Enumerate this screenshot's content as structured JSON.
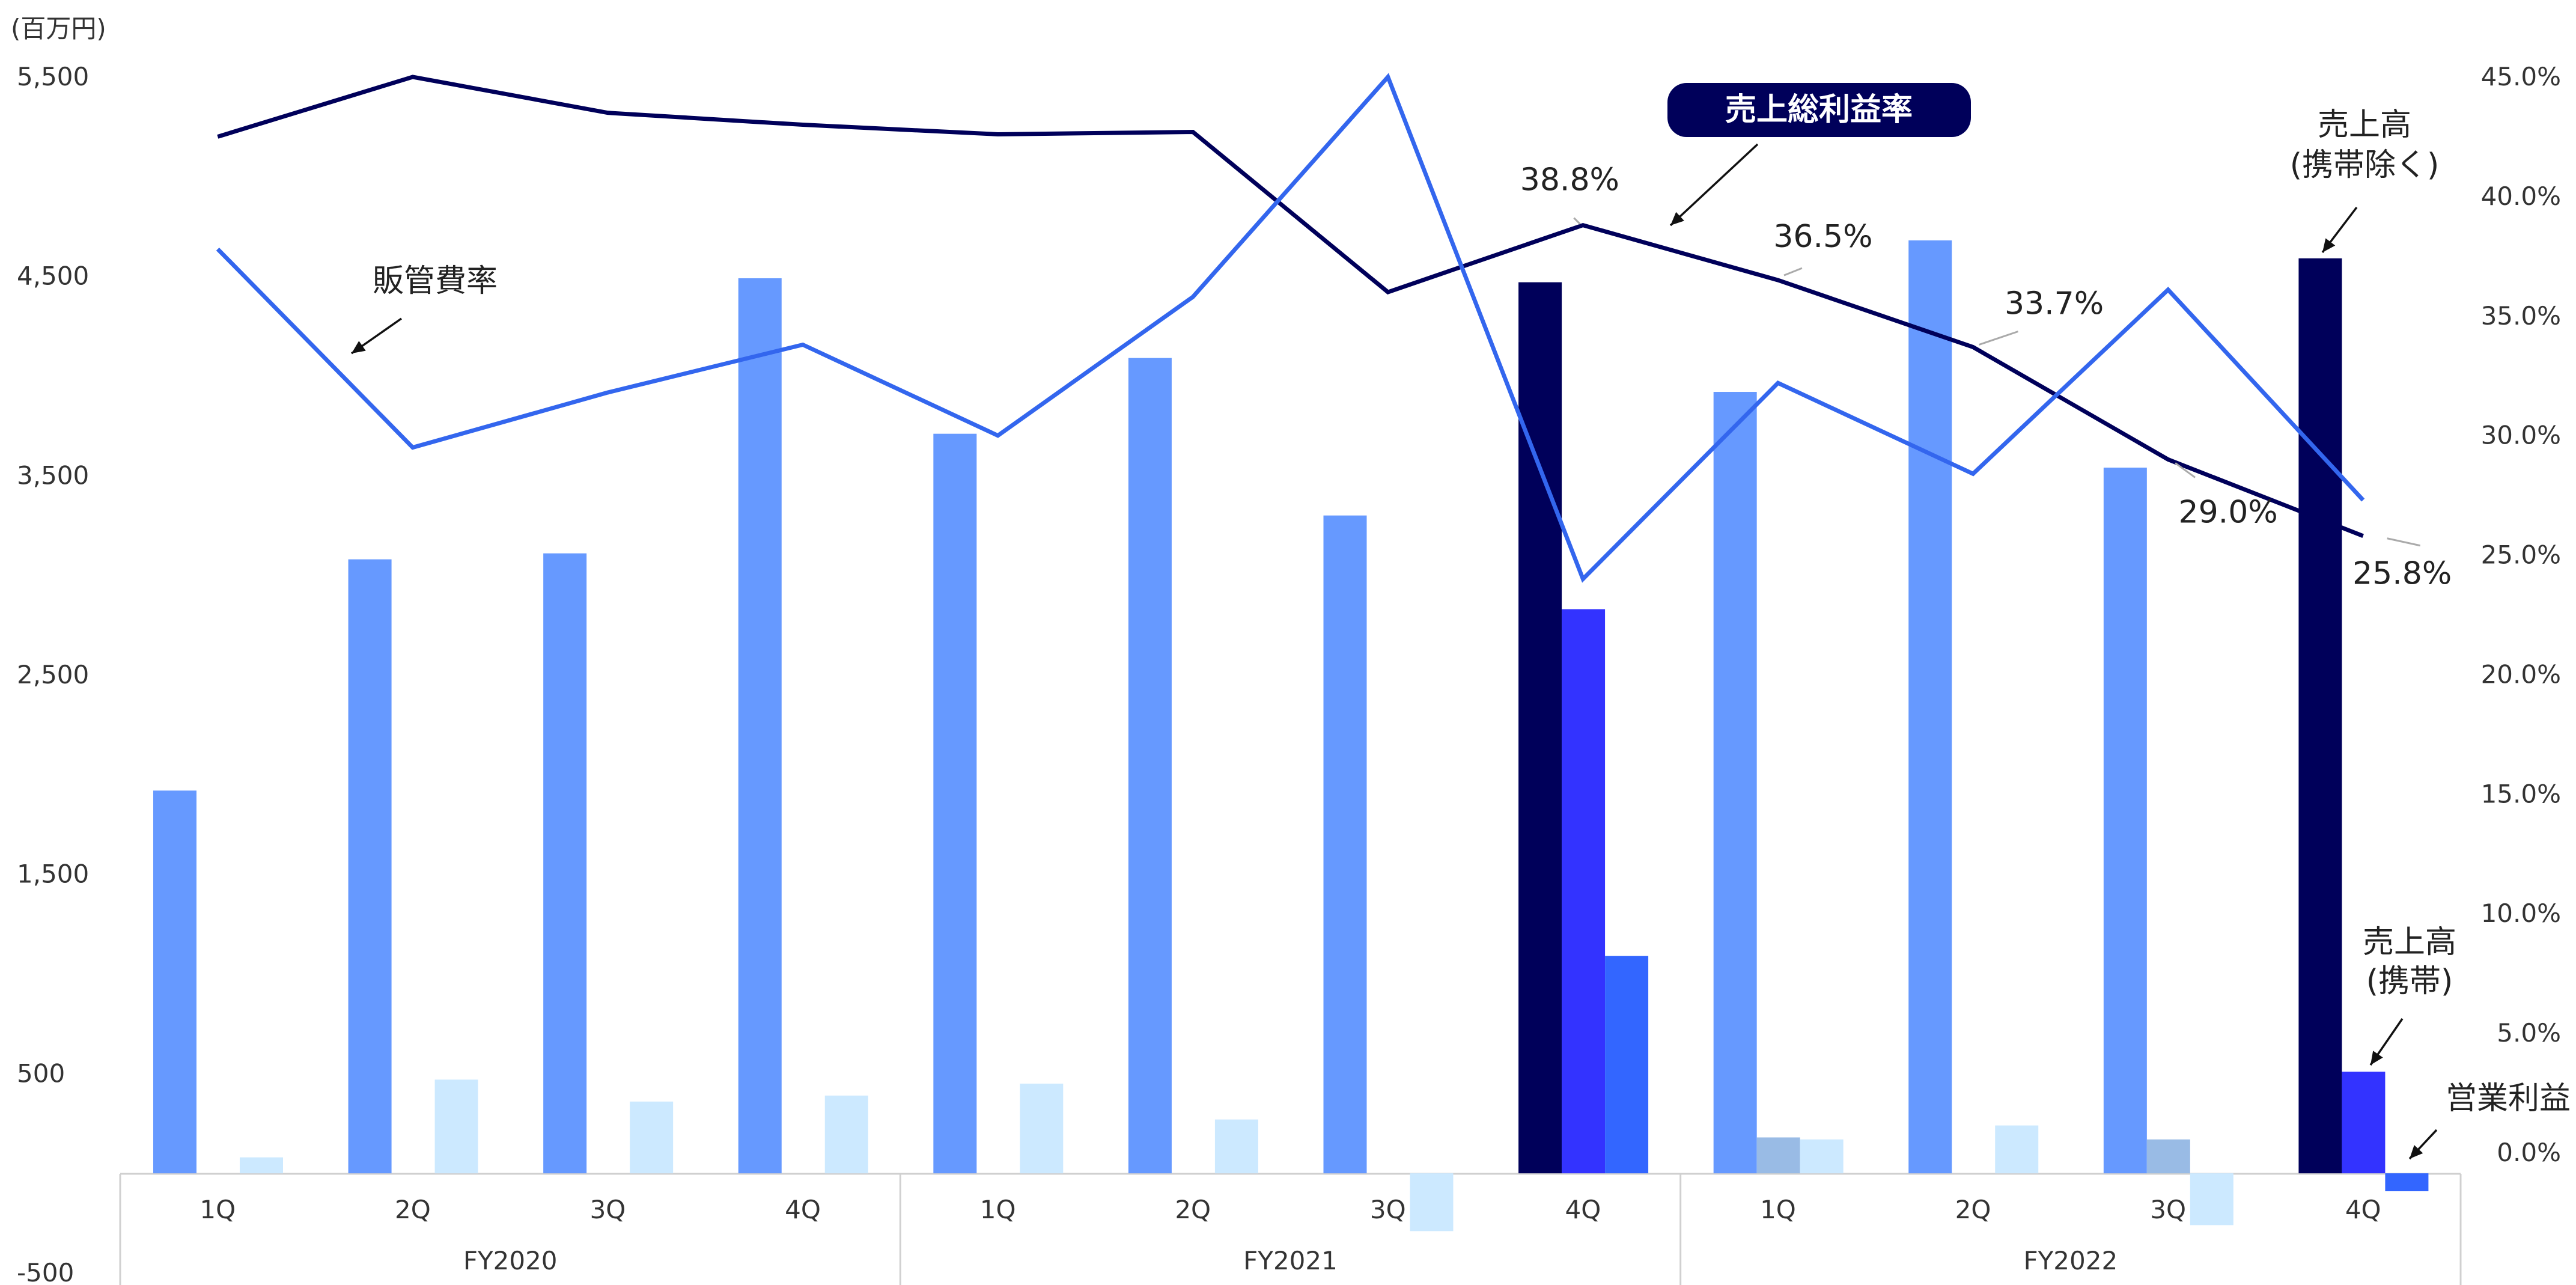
{
  "chart_data": {
    "type": "bar",
    "y_unit_label": "(百万円)",
    "y_left": {
      "ylim": [
        -500,
        5500
      ],
      "ticks": [
        "5,500",
        "4,500",
        "3,500",
        "2,500",
        "1,500",
        "500",
        "-500"
      ],
      "tick_values": [
        5500,
        4500,
        3500,
        2500,
        1500,
        500,
        -500
      ]
    },
    "y_right": {
      "ylim": [
        -2.5,
        45
      ],
      "ticks": [
        "45.0%",
        "40.0%",
        "35.0%",
        "30.0%",
        "25.0%",
        "20.0%",
        "15.0%",
        "10.0%",
        "5.0%",
        "0.0%"
      ],
      "tick_values": [
        45,
        40,
        35,
        30,
        25,
        20,
        15,
        10,
        5,
        0
      ]
    },
    "groups": [
      "FY2020",
      "FY2021",
      "FY2022"
    ],
    "quarters": [
      "1Q",
      "2Q",
      "3Q",
      "4Q",
      "1Q",
      "2Q",
      "3Q",
      "4Q",
      "1Q",
      "2Q",
      "3Q",
      "4Q"
    ],
    "colors": {
      "sales_total": "#6699ff",
      "sales_ex_mobile": "#00005a",
      "sales_mobile": "#3333ff",
      "operating_profit": "#cce9ff",
      "operating_profit_fy21q4": "#3366ff",
      "operating_profit_fy22q4": "#3366ff",
      "small_bar": "#99bbe5",
      "gross_margin_line": "#00005a",
      "sga_line": "#3366ee",
      "tag_bg": "#00005a"
    },
    "series": [
      {
        "key": "sales",
        "values": [
          1920,
          3080,
          3110,
          4490,
          3710,
          4090,
          3300,
          null,
          3920,
          4680,
          3540,
          null
        ]
      },
      {
        "key": "sales_ex_mobile",
        "values": [
          null,
          null,
          null,
          null,
          null,
          null,
          null,
          4470,
          null,
          null,
          null,
          4590
        ]
      },
      {
        "key": "sales_mobile",
        "values": [
          null,
          null,
          null,
          null,
          null,
          null,
          null,
          2830,
          null,
          null,
          null,
          510
        ]
      },
      {
        "key": "small_bar",
        "values": [
          null,
          null,
          null,
          null,
          null,
          null,
          null,
          null,
          180,
          null,
          170,
          null
        ]
      },
      {
        "key": "operating_profit",
        "values": [
          80,
          470,
          360,
          390,
          450,
          270,
          -290,
          1090,
          170,
          240,
          -260,
          -90
        ]
      },
      {
        "key": "gross_margin_pct",
        "values": [
          42.5,
          45.0,
          43.5,
          43.0,
          42.6,
          42.7,
          36.0,
          38.8,
          36.5,
          33.7,
          29.0,
          25.8
        ]
      },
      {
        "key": "sga_pct",
        "values": [
          37.8,
          29.5,
          31.8,
          33.8,
          30.0,
          35.8,
          45.0,
          24.0,
          32.2,
          28.4,
          36.1,
          27.3
        ]
      }
    ],
    "gross_margin_labels": [
      {
        "index": 7,
        "text": "38.8%"
      },
      {
        "index": 8,
        "text": "36.5%"
      },
      {
        "index": 9,
        "text": "33.7%"
      },
      {
        "index": 10,
        "text": "29.0%"
      },
      {
        "index": 11,
        "text": "25.8%"
      }
    ],
    "annotations": {
      "gross_margin_tag": "売上総利益率",
      "sga_label": "販管費率",
      "sales_ex_mobile_line1": "売上高",
      "sales_ex_mobile_line2": "(携帯除く)",
      "sales_mobile_line1": "売上高",
      "sales_mobile_line2": "(携帯)",
      "operating_profit_label": "営業利益"
    }
  }
}
